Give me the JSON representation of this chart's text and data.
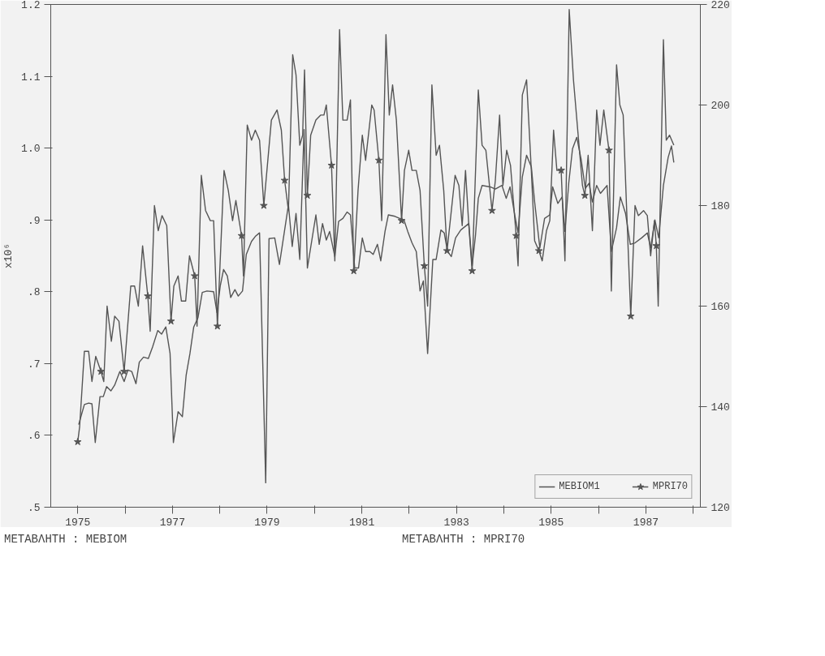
{
  "chart_data": {
    "type": "line",
    "ylabel": "x10⁶",
    "xlim": [
      1974.43,
      1988.15
    ],
    "ylim": [
      0.5,
      1.2
    ],
    "y2lim": [
      120,
      220
    ],
    "xticks": [
      {
        "value": 1975,
        "label": "1975"
      },
      {
        "value": 1976,
        "label": null
      },
      {
        "value": 1977,
        "label": "1977"
      },
      {
        "value": 1978,
        "label": null
      },
      {
        "value": 1979,
        "label": "1979"
      },
      {
        "value": 1980,
        "label": null
      },
      {
        "value": 1981,
        "label": "1981"
      },
      {
        "value": 1982,
        "label": null
      },
      {
        "value": 1983,
        "label": "1983"
      },
      {
        "value": 1984,
        "label": null
      },
      {
        "value": 1985,
        "label": "1985"
      },
      {
        "value": 1986,
        "label": null
      },
      {
        "value": 1987,
        "label": "1987"
      },
      {
        "value": 1988,
        "label": null
      }
    ],
    "yticks": [
      {
        "value": 0.5,
        "label": ".5"
      },
      {
        "value": 0.6,
        "label": ".6"
      },
      {
        "value": 0.7,
        "label": ".7"
      },
      {
        "value": 0.8,
        "label": ".8"
      },
      {
        "value": 0.9,
        "label": ".9"
      },
      {
        "value": 1.0,
        "label": "1.0"
      },
      {
        "value": 1.1,
        "label": "1.1"
      },
      {
        "value": 1.2,
        "label": "1.2"
      }
    ],
    "y2ticks": [
      120,
      140,
      160,
      180,
      200,
      220
    ],
    "grid": false,
    "legend": "bottom right",
    "line_style": "solid",
    "annotations": [
      "ΜΕΤΑΒΛΗΤΗ : MEBIOM",
      "ΜΕΤΑΒΛΗΤΗ : MPRI70"
    ],
    "series": [
      {
        "name": "MEBIOM1",
        "color": "#555555",
        "marker": "none",
        "x": [
          1975.02,
          1975.14,
          1975.23,
          1975.3,
          1975.37,
          1975.47,
          1975.54,
          1975.61,
          1975.7,
          1975.78,
          1975.89,
          1975.98,
          1976.06,
          1976.14,
          1976.23,
          1976.3,
          1976.39,
          1976.49,
          1976.58,
          1976.69,
          1976.77,
          1976.86,
          1976.95,
          1977.02,
          1977.12,
          1977.21,
          1977.29,
          1977.37,
          1977.45,
          1977.54,
          1977.63,
          1977.73,
          1977.87,
          1977.94,
          1978.01,
          1978.08,
          1978.16,
          1978.23,
          1978.32,
          1978.39,
          1978.48,
          1978.56,
          1978.67,
          1978.75,
          1978.84,
          1978.97,
          1979.04,
          1979.16,
          1979.26,
          1979.45,
          1979.53,
          1979.61,
          1979.69,
          1979.78,
          1979.85,
          1980.03,
          1980.1,
          1980.17,
          1980.25,
          1980.32,
          1980.43,
          1980.51,
          1980.6,
          1980.69,
          1980.76,
          1980.85,
          1980.93,
          1981.01,
          1981.08,
          1981.17,
          1981.24,
          1981.33,
          1981.4,
          1981.49,
          1981.56,
          1981.7,
          1981.8,
          1981.89,
          1981.97,
          1982.06,
          1982.15,
          1982.23,
          1982.3,
          1982.39,
          1982.5,
          1982.57,
          1982.67,
          1982.74,
          1982.81,
          1982.89,
          1982.98,
          1983.09,
          1983.26,
          1983.33,
          1983.4,
          1983.46,
          1983.54,
          1983.71,
          1983.82,
          1983.96,
          1984.05,
          1984.13,
          1984.23,
          1984.3,
          1984.39,
          1984.48,
          1984.58,
          1984.65,
          1984.76,
          1984.86,
          1984.97,
          1985.03,
          1985.14,
          1985.23,
          1985.29,
          1985.37,
          1985.45,
          1985.54,
          1985.63,
          1985.72,
          1985.8,
          1985.87,
          1985.96,
          1986.04,
          1986.18,
          1986.27,
          1986.38,
          1986.46,
          1986.57,
          1986.67,
          1986.77,
          1986.91,
          1987.03,
          1987.1,
          1987.19,
          1987.27,
          1987.37,
          1987.47,
          1987.54,
          1987.59
        ],
        "values": [
          0.615,
          0.643,
          0.645,
          0.644,
          0.59,
          0.654,
          0.654,
          0.668,
          0.662,
          0.67,
          0.689,
          0.675,
          0.691,
          0.689,
          0.672,
          0.702,
          0.709,
          0.707,
          0.723,
          0.746,
          0.741,
          0.751,
          0.714,
          0.59,
          0.633,
          0.626,
          0.684,
          0.714,
          0.751,
          0.764,
          0.799,
          0.801,
          0.8,
          0.771,
          0.808,
          0.831,
          0.822,
          0.792,
          0.803,
          0.794,
          0.801,
          0.852,
          0.87,
          0.877,
          0.882,
          0.534,
          0.874,
          0.875,
          0.838,
          0.921,
          0.863,
          0.909,
          0.845,
          1.026,
          0.833,
          0.907,
          0.866,
          0.895,
          0.872,
          0.884,
          0.849,
          0.898,
          0.902,
          0.911,
          0.907,
          0.833,
          0.833,
          0.875,
          0.856,
          0.856,
          0.852,
          0.866,
          0.843,
          0.884,
          0.907,
          0.905,
          0.902,
          0.9,
          0.884,
          0.868,
          0.856,
          0.801,
          0.815,
          0.714,
          0.845,
          0.845,
          0.886,
          0.882,
          0.856,
          0.849,
          0.875,
          0.886,
          0.895,
          0.836,
          0.878,
          0.93,
          0.948,
          0.946,
          0.943,
          0.948,
          0.93,
          0.946,
          0.907,
          0.882,
          0.96,
          0.99,
          0.974,
          0.925,
          0.861,
          0.902,
          0.907,
          0.946,
          0.923,
          0.932,
          0.884,
          0.951,
          0.999,
          1.015,
          0.985,
          0.944,
          0.951,
          0.925,
          0.948,
          0.937,
          0.948,
          0.856,
          0.889,
          0.932,
          0.909,
          0.866,
          0.868,
          0.875,
          0.882,
          0.861,
          0.9,
          0.875,
          0.948,
          0.987,
          1.003,
          0.98
        ]
      },
      {
        "name": "MPRI70",
        "axis": "y2",
        "color": "#555555",
        "marker": "none",
        "x": [
          1975.0,
          1975.04,
          1975.14,
          1975.23,
          1975.3,
          1975.38,
          1975.49,
          1975.55,
          1975.62,
          1975.71,
          1975.78,
          1975.87,
          1975.98,
          1976.12,
          1976.2,
          1976.28,
          1976.37,
          1976.48,
          1976.53,
          1976.62,
          1976.7,
          1976.78,
          1976.88,
          1976.97,
          1977.03,
          1977.12,
          1977.19,
          1977.28,
          1977.36,
          1977.47,
          1977.52,
          1977.61,
          1977.7,
          1977.8,
          1977.87,
          1977.95,
          1978.09,
          1978.18,
          1978.27,
          1978.34,
          1978.46,
          1978.5,
          1978.58,
          1978.67,
          1978.75,
          1978.84,
          1978.93,
          1979.09,
          1979.21,
          1979.3,
          1979.37,
          1979.45,
          1979.54,
          1979.61,
          1979.69,
          1979.75,
          1979.79,
          1979.85,
          1979.92,
          1980.03,
          1980.13,
          1980.2,
          1980.25,
          1980.36,
          1980.43,
          1980.53,
          1980.6,
          1980.69,
          1980.76,
          1980.83,
          1980.92,
          1981.01,
          1981.08,
          1981.21,
          1981.26,
          1981.36,
          1981.42,
          1981.51,
          1981.58,
          1981.65,
          1981.73,
          1981.84,
          1981.9,
          1981.99,
          1982.06,
          1982.15,
          1982.23,
          1982.32,
          1982.39,
          1982.48,
          1982.57,
          1982.64,
          1982.73,
          1982.8,
          1982.97,
          1983.05,
          1983.12,
          1983.19,
          1983.26,
          1983.33,
          1983.46,
          1983.54,
          1983.62,
          1983.75,
          1983.82,
          1983.91,
          1983.98,
          1984.06,
          1984.14,
          1984.2,
          1984.26,
          1984.3,
          1984.39,
          1984.48,
          1984.58,
          1984.65,
          1984.74,
          1984.81,
          1984.9,
          1984.97,
          1985.05,
          1985.12,
          1985.21,
          1985.29,
          1985.38,
          1985.47,
          1985.56,
          1985.66,
          1985.71,
          1985.78,
          1985.87,
          1985.96,
          1986.03,
          1986.11,
          1986.22,
          1986.27,
          1986.38,
          1986.45,
          1986.52,
          1986.59,
          1986.68,
          1986.77,
          1986.84,
          1986.95,
          1987.03,
          1987.1,
          1987.18,
          1987.22,
          1987.26,
          1987.37,
          1987.43,
          1987.5,
          1987.59
        ],
        "values": [
          133,
          136,
          151,
          151,
          145,
          150,
          147,
          145,
          160,
          153,
          158,
          157,
          147,
          164,
          164,
          160,
          172,
          162,
          155,
          180,
          175,
          178,
          176,
          157,
          164,
          166,
          161,
          161,
          170,
          166,
          156,
          186,
          179,
          177,
          177,
          156,
          187,
          183,
          177,
          181,
          174,
          166,
          196,
          193,
          195,
          193,
          180,
          197,
          199,
          195,
          185,
          179,
          210,
          206,
          192,
          194,
          207,
          182,
          194,
          197,
          198,
          198,
          200,
          188,
          169,
          215,
          197,
          197,
          201,
          167,
          183,
          194,
          189,
          200,
          199,
          189,
          177,
          214,
          198,
          204,
          197,
          177,
          187,
          191,
          187,
          187,
          183,
          168,
          160,
          204,
          190,
          192,
          183,
          171,
          186,
          184,
          176,
          187,
          176,
          167,
          203,
          192,
          191,
          179,
          185,
          198,
          184,
          191,
          188,
          181,
          174,
          168,
          202,
          205,
          187,
          173,
          171,
          169,
          175,
          177,
          195,
          187,
          187,
          169,
          219,
          205,
          195,
          184,
          182,
          190,
          175,
          199,
          192,
          199,
          191,
          163,
          208,
          200,
          198,
          180,
          158,
          180,
          178,
          179,
          178,
          170,
          177,
          172,
          160,
          213,
          193,
          194,
          192
        ]
      },
      {
        "type": "scatter",
        "axis": "y2",
        "color": "#555555",
        "marker": "star",
        "x": [
          1975.0,
          1975.49,
          1975.98,
          1976.48,
          1976.97,
          1977.47,
          1977.95,
          1978.46,
          1978.93,
          1979.37,
          1979.85,
          1980.36,
          1980.83,
          1981.36,
          1981.84,
          1982.32,
          1982.8,
          1983.33,
          1983.75,
          1984.26,
          1984.74,
          1985.21,
          1985.71,
          1986.22,
          1986.68,
          1987.22
        ],
        "values": [
          133,
          147,
          147,
          162,
          157,
          166,
          156,
          174,
          180,
          185,
          182,
          188,
          167,
          189,
          177,
          168,
          171,
          167,
          179,
          174,
          171,
          187,
          182,
          191,
          158,
          172
        ]
      }
    ]
  }
}
